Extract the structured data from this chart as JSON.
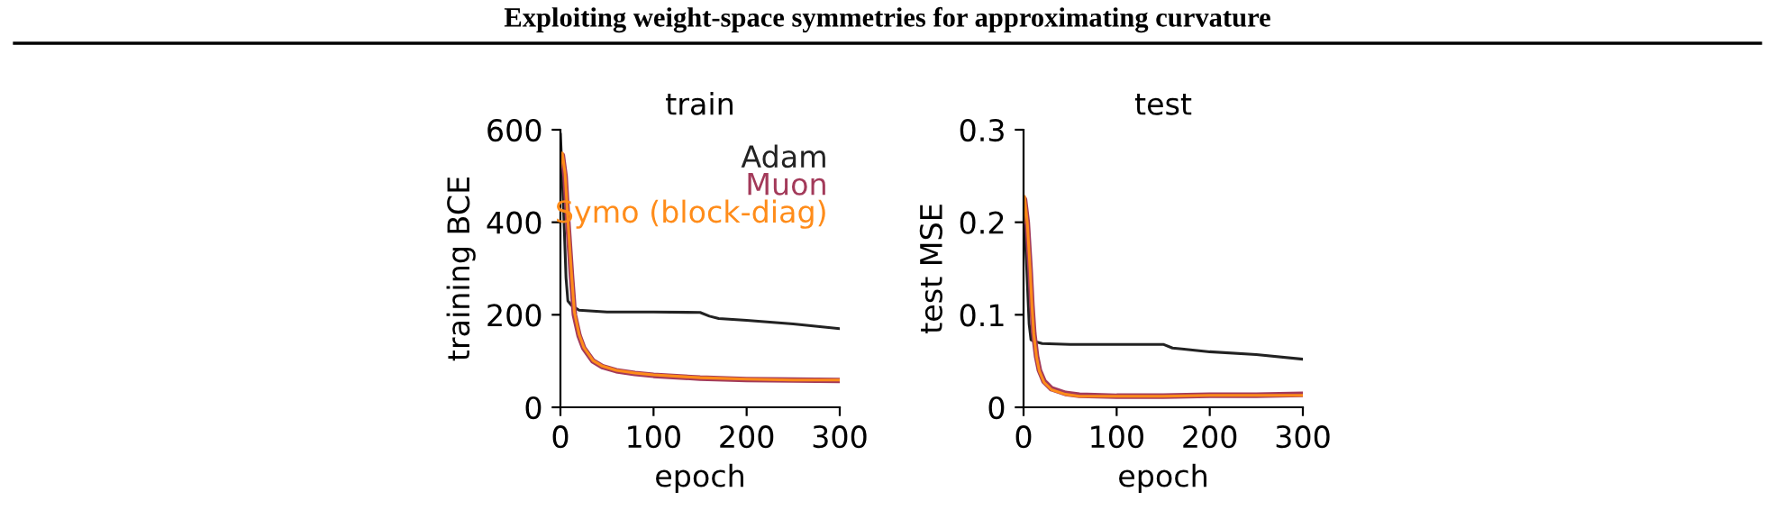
{
  "chart_data": [
    {
      "type": "line",
      "title": "train",
      "xlabel": "epoch",
      "ylabel": "training BCE",
      "annotations": [
        "Exploiting weight-space symmetries for approximating curvature"
      ],
      "xlim": [
        0,
        300
      ],
      "xticks": [
        0,
        100,
        200,
        300
      ],
      "ylim": [
        0,
        600
      ],
      "yticks": [
        0,
        200,
        400,
        600
      ],
      "grid": false,
      "legend": "top right",
      "series": [
        {
          "name": "Adam",
          "color": "#222222",
          "x": [
            0,
            3,
            6,
            8,
            12,
            20,
            50,
            100,
            150,
            160,
            170,
            200,
            250,
            300
          ],
          "values": [
            590,
            450,
            280,
            230,
            220,
            210,
            206,
            206,
            205,
            197,
            192,
            188,
            180,
            170
          ]
        },
        {
          "name": "Muon",
          "color": "#a33a5a",
          "x": [
            0,
            2,
            5,
            8,
            12,
            15,
            20,
            25,
            35,
            45,
            60,
            80,
            100,
            150,
            200,
            250,
            300
          ],
          "values": [
            520,
            545,
            500,
            400,
            280,
            200,
            155,
            128,
            100,
            88,
            79,
            73,
            69,
            63,
            60,
            59,
            58
          ]
        },
        {
          "name": "Symo (block-diag)",
          "color": "#ff8c1a",
          "x": [
            0,
            2,
            5,
            8,
            12,
            15,
            20,
            25,
            35,
            45,
            60,
            80,
            100,
            150,
            200,
            250,
            300
          ],
          "values": [
            520,
            550,
            505,
            405,
            285,
            205,
            158,
            130,
            101,
            89,
            80,
            74,
            70,
            64,
            61,
            59,
            59
          ]
        }
      ]
    },
    {
      "type": "line",
      "title": "test",
      "xlabel": "epoch",
      "ylabel": "test MSE",
      "xlim": [
        0,
        300
      ],
      "xticks": [
        0,
        100,
        200,
        300
      ],
      "ylim": [
        0,
        0.3
      ],
      "yticks": [
        0,
        0.1,
        0.2,
        0.3
      ],
      "grid": false,
      "series": [
        {
          "color": "#222222",
          "x": [
            0,
            3,
            6,
            8,
            12,
            20,
            50,
            100,
            150,
            160,
            170,
            200,
            250,
            300
          ],
          "values": [
            0.22,
            0.16,
            0.09,
            0.073,
            0.071,
            0.069,
            0.068,
            0.068,
            0.068,
            0.064,
            0.063,
            0.06,
            0.057,
            0.052
          ]
        },
        {
          "color": "#a33a5a",
          "x": [
            0,
            1,
            4,
            7,
            9,
            11,
            14,
            17,
            22,
            30,
            45,
            60,
            100,
            150,
            200,
            250,
            300
          ],
          "values": [
            0.2,
            0.225,
            0.2,
            0.15,
            0.11,
            0.08,
            0.055,
            0.04,
            0.028,
            0.02,
            0.015,
            0.013,
            0.012,
            0.012,
            0.013,
            0.013,
            0.014
          ]
        },
        {
          "color": "#ff8c1a",
          "x": [
            0,
            1,
            4,
            7,
            9,
            11,
            14,
            17,
            22,
            30,
            45,
            60,
            100,
            150,
            200,
            250,
            300
          ],
          "values": [
            0.2,
            0.228,
            0.2,
            0.15,
            0.11,
            0.079,
            0.054,
            0.039,
            0.027,
            0.019,
            0.014,
            0.012,
            0.012,
            0.012,
            0.013,
            0.013,
            0.013
          ]
        }
      ]
    }
  ]
}
